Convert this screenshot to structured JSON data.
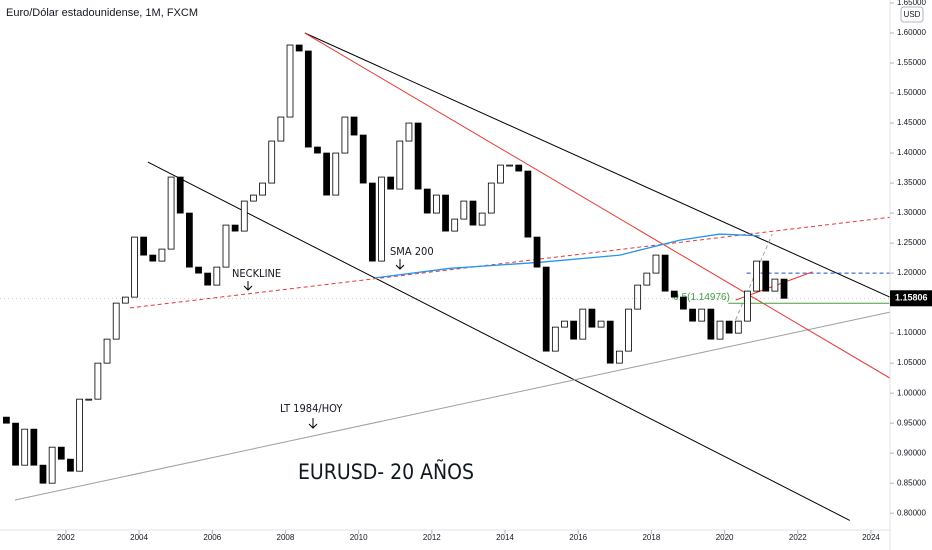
{
  "chart_data": {
    "type": "candlestick",
    "title": "Euro/Dólar estadounidense, 1M, FXCM",
    "currency": "USD",
    "x": [
      2000.125,
      2000.375,
      2000.625,
      2000.875,
      2001.125,
      2001.375,
      2001.625,
      2001.875,
      2002.125,
      2002.375,
      2002.625,
      2002.875,
      2003.125,
      2003.375,
      2003.625,
      2003.875,
      2004.125,
      2004.375,
      2004.625,
      2004.875,
      2005.125,
      2005.375,
      2005.625,
      2005.875,
      2006.125,
      2006.375,
      2006.625,
      2006.875,
      2007.125,
      2007.375,
      2007.625,
      2007.875,
      2008.125,
      2008.375,
      2008.625,
      2008.875,
      2009.125,
      2009.375,
      2009.625,
      2009.875,
      2010.125,
      2010.375,
      2010.625,
      2010.875,
      2011.125,
      2011.375,
      2011.625,
      2011.875,
      2012.125,
      2012.375,
      2012.625,
      2012.875,
      2013.125,
      2013.375,
      2013.625,
      2013.875,
      2014.125,
      2014.375,
      2014.625,
      2014.875,
      2015.125,
      2015.375,
      2015.625,
      2015.875,
      2016.125,
      2016.375,
      2016.625,
      2016.875,
      2017.125,
      2017.375,
      2017.625,
      2017.875,
      2018.125,
      2018.375,
      2018.625,
      2018.875,
      2019.125,
      2019.375,
      2019.625,
      2019.875,
      2020.125,
      2020.375,
      2020.625,
      2020.875,
      2021.125,
      2021.375,
      2021.625
    ],
    "values": [
      0.96,
      0.95,
      0.88,
      0.94,
      0.88,
      0.85,
      0.91,
      0.89,
      0.87,
      0.99,
      0.99,
      1.05,
      1.09,
      1.15,
      1.16,
      1.26,
      1.23,
      1.22,
      1.24,
      1.36,
      1.3,
      1.21,
      1.2,
      1.18,
      1.21,
      1.28,
      1.27,
      1.32,
      1.33,
      1.35,
      1.42,
      1.46,
      1.58,
      1.57,
      1.41,
      1.4,
      1.33,
      1.4,
      1.46,
      1.43,
      1.35,
      1.22,
      1.36,
      1.34,
      1.42,
      1.45,
      1.34,
      1.3,
      1.33,
      1.27,
      1.29,
      1.32,
      1.28,
      1.3,
      1.35,
      1.38,
      1.38,
      1.37,
      1.26,
      1.21,
      1.07,
      1.11,
      1.12,
      1.09,
      1.14,
      1.11,
      1.12,
      1.05,
      1.07,
      1.14,
      1.18,
      1.2,
      1.23,
      1.17,
      1.16,
      1.14,
      1.12,
      1.14,
      1.09,
      1.12,
      1.1,
      1.12,
      1.17,
      1.22,
      1.17,
      1.19,
      1.15806
    ],
    "up_color": "#ffffff",
    "down_color": "#000000",
    "xlim": [
      2000.2,
      2024.52
    ],
    "ylim": [
      0.772,
      1.655
    ],
    "xticks": [
      2002,
      2004,
      2006,
      2008,
      2010,
      2012,
      2014,
      2016,
      2018,
      2020,
      2022,
      2024
    ],
    "yticks": [
      {
        "value": 0.8,
        "label": "0.80000"
      },
      {
        "value": 0.85,
        "label": "0.85000"
      },
      {
        "value": 0.9,
        "label": "0.90000"
      },
      {
        "value": 0.95,
        "label": "0.95000"
      },
      {
        "value": 1,
        "label": "1.00000"
      },
      {
        "value": 1.05,
        "label": "1.05000"
      },
      {
        "value": 1.1,
        "label": "1.10000"
      },
      {
        "value": 1.15,
        "label": "1.15000"
      },
      {
        "value": 1.2,
        "label": "1.20000"
      },
      {
        "value": 1.25,
        "label": "1.25000"
      },
      {
        "value": 1.3,
        "label": "1.30000"
      },
      {
        "value": 1.35,
        "label": "1.35000"
      },
      {
        "value": 1.4,
        "label": "1.40000"
      },
      {
        "value": 1.45,
        "label": "1.45000"
      },
      {
        "value": 1.5,
        "label": "1.50000"
      },
      {
        "value": 1.55,
        "label": "1.55000"
      },
      {
        "value": 1.6,
        "label": "1.60000"
      },
      {
        "value": 1.65,
        "label": "1.65000"
      }
    ],
    "last_price": 1.15806,
    "trendlines": [
      {
        "x": [
          2008.53,
          2024.52
        ],
        "y": [
          1.6,
          1.16
        ],
        "color": "#000000",
        "dashed": false
      },
      {
        "x": [
          2004.24,
          2023.42
        ],
        "y": [
          1.385,
          0.788
        ],
        "color": "#000000",
        "dashed": false
      },
      {
        "x": [
          2000.61,
          2024.52
        ],
        "y": [
          0.822,
          1.135
        ],
        "color": "#9e9e9e",
        "dashed": false
      },
      {
        "x": [
          2008.53,
          2024.52
        ],
        "y": [
          1.6,
          1.025
        ],
        "color": "#e53935",
        "dashed": false
      },
      {
        "x": [
          2003.75,
          2024.52
        ],
        "y": [
          1.142,
          1.293
        ],
        "color": "#e53935",
        "dashed": true
      },
      {
        "x": [
          2020.6,
          2024.52
        ],
        "y": [
          1.2,
          1.2
        ],
        "color": "#1e4bd2",
        "dashed": true
      },
      {
        "x": [
          2020.3,
          2022.4
        ],
        "y": [
          1.155,
          1.202
        ],
        "color": "#e53935",
        "dashed": false
      },
      {
        "x": [
          2020.3,
          2021.3
        ],
        "y": [
          1.122,
          1.265
        ],
        "color": "#9e9e9e",
        "dashed": true
      }
    ],
    "sma": {
      "name": "SMA 200",
      "color": "#2196f3",
      "x": [
        2010.45,
        2012.5,
        2014.95,
        2017.14,
        2018.78,
        2019.87,
        2020.96
      ],
      "y": [
        1.192,
        1.208,
        1.218,
        1.23,
        1.255,
        1.265,
        1.262
      ]
    },
    "fib": {
      "label": "0.5(1.14976)",
      "value": 1.14976,
      "x": [
        2020.1,
        2024.52
      ],
      "color": "#43a047"
    },
    "annotations": [
      "NECKLINE",
      "LT 1984/HOY",
      "EURUSD- 20 AÑOS"
    ]
  }
}
